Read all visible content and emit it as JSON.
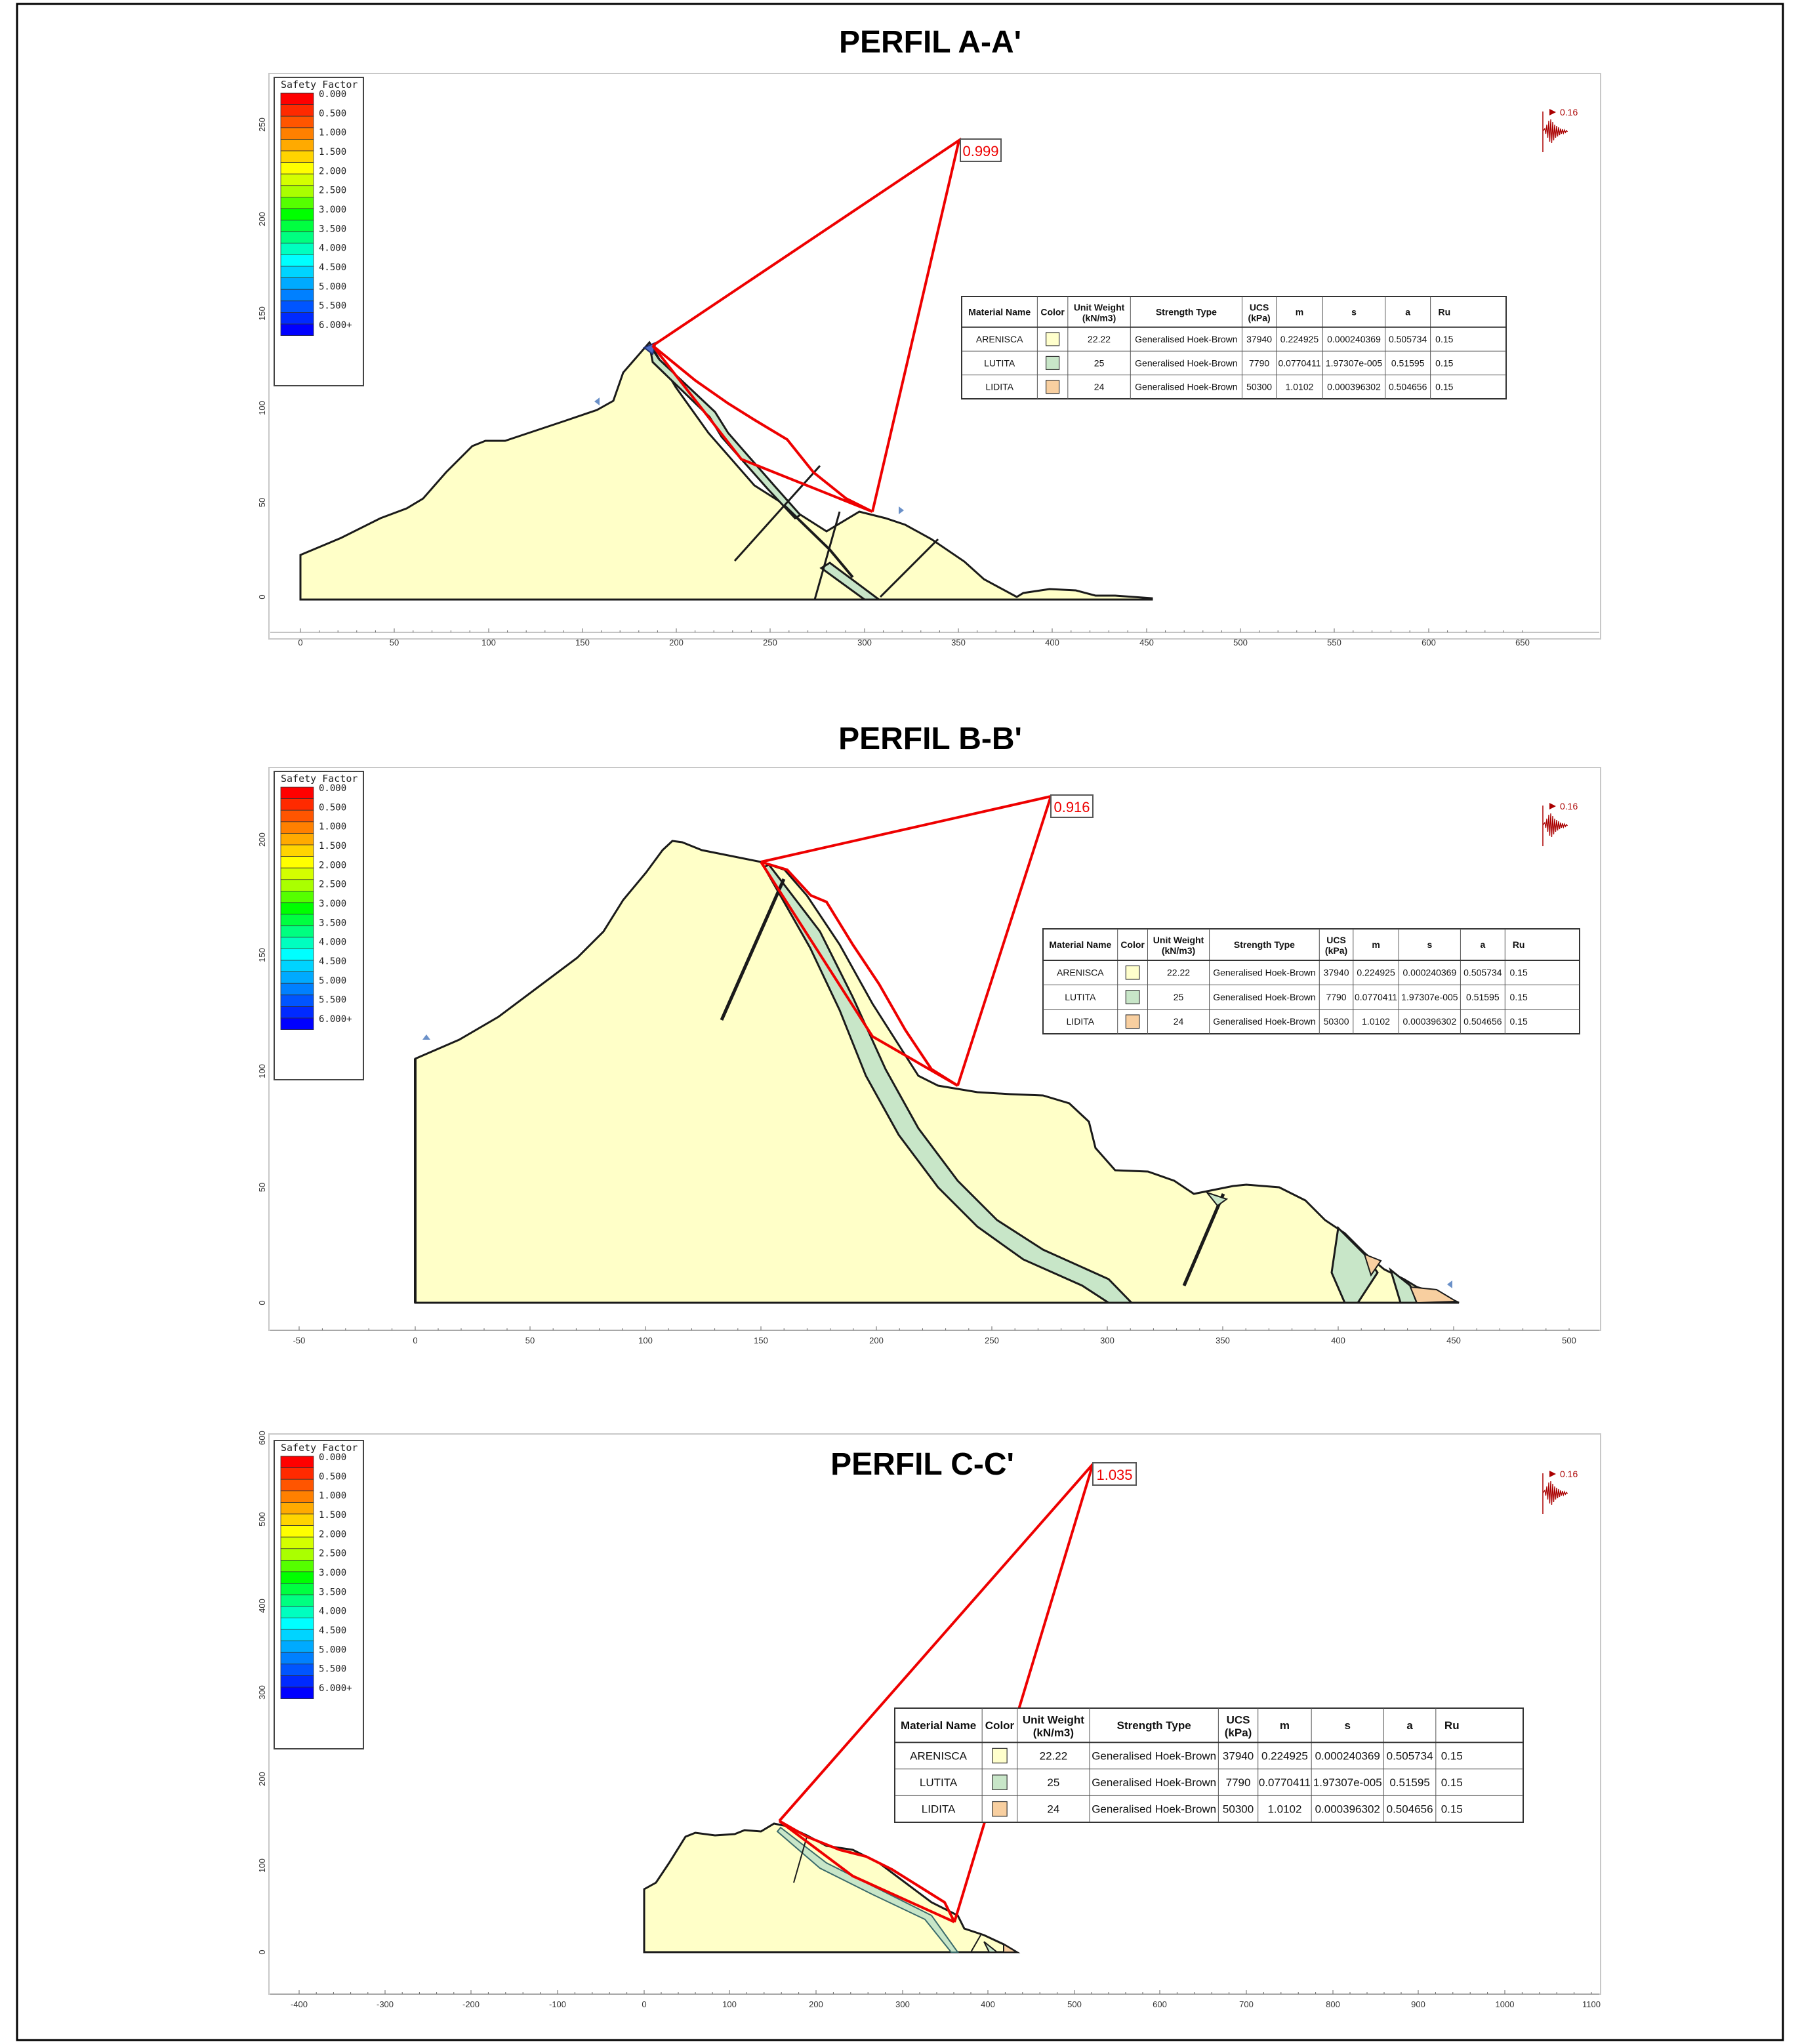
{
  "legend": {
    "title": "Safety Factor",
    "levels": [
      "0.000",
      "0.500",
      "1.000",
      "1.500",
      "2.000",
      "2.500",
      "3.000",
      "3.500",
      "4.000",
      "4.500",
      "5.000",
      "5.500",
      "6.000+"
    ],
    "colors": [
      "#ff0000",
      "#ff2a00",
      "#ff5500",
      "#ff8000",
      "#ffaa00",
      "#ffd400",
      "#ffff00",
      "#d4ff00",
      "#aaff00",
      "#55ff00",
      "#00ff00",
      "#00ff40",
      "#00ff80",
      "#00ffbf",
      "#00ffff",
      "#00d4ff",
      "#00aaff",
      "#0080ff",
      "#0055ff",
      "#002aff",
      "#0000ff"
    ]
  },
  "seismic_label": "0.16",
  "table": {
    "headers": [
      "Material Name",
      "Color",
      "Unit Weight (kN/m3)",
      "Strength Type",
      "UCS (kPa)",
      "m",
      "s",
      "a",
      "Ru"
    ],
    "rows": [
      {
        "name": "ARENISCA",
        "color": "#ffffcc",
        "unit_weight": "22.22",
        "strength": "Generalised Hoek-Brown",
        "ucs": "37940",
        "m": "0.224925",
        "s": "0.000240369",
        "a": "0.505734",
        "ru": "0.15"
      },
      {
        "name": "LUTITA",
        "color": "#c8e6c8",
        "unit_weight": "25",
        "strength": "Generalised Hoek-Brown",
        "ucs": "7790",
        "m": "0.0770411",
        "s": "1.97307e-005",
        "a": "0.51595",
        "ru": "0.15"
      },
      {
        "name": "LIDITA",
        "color": "#f8cfa0",
        "unit_weight": "24",
        "strength": "Generalised Hoek-Brown",
        "ucs": "50300",
        "m": "1.0102",
        "s": "0.000396302",
        "a": "0.504656",
        "ru": "0.15"
      }
    ]
  },
  "colors": {
    "slip": "#ee0000",
    "ground": "#ffffc8",
    "lutita": "#c8e6c8",
    "lidita": "#f8cfa0",
    "seismic": "#aa0000"
  },
  "panels": [
    {
      "title": "PERFIL A-A'",
      "fs_value": "0.999",
      "x_ticks": [
        "0",
        "50",
        "100",
        "150",
        "200",
        "250",
        "300",
        "350",
        "400",
        "450",
        "500",
        "550",
        "600",
        "650"
      ],
      "y_ticks": [
        "0",
        "50",
        "100",
        "150",
        "200",
        "250"
      ]
    },
    {
      "title": "PERFIL B-B'",
      "fs_value": "0.916",
      "x_ticks": [
        "-50",
        "0",
        "50",
        "100",
        "150",
        "200",
        "250",
        "300",
        "350",
        "400",
        "450",
        "500"
      ],
      "y_ticks": [
        "0",
        "50",
        "100",
        "150",
        "200"
      ]
    },
    {
      "title": "PERFIL C-C'",
      "fs_value": "1.035",
      "x_ticks": [
        "-400",
        "-300",
        "-200",
        "-100",
        "0",
        "100",
        "200",
        "300",
        "400",
        "500",
        "600",
        "700",
        "800",
        "900",
        "1000",
        "1100"
      ],
      "y_ticks": [
        "0",
        "100",
        "200",
        "300",
        "400",
        "500",
        "600"
      ]
    }
  ]
}
